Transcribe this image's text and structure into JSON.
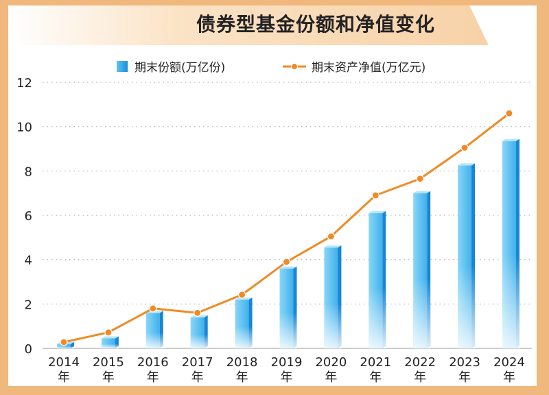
{
  "title": "债券型基金份额和净值变化",
  "legend": {
    "bar": "期末份额(万亿份)",
    "line": "期末资产净值(万亿元)"
  },
  "colors": {
    "bar_light": "#7fd0f5",
    "bar_dark": "#1a8ad6",
    "line": "#f08a24",
    "frame": "#f0b87c"
  },
  "chart_data": {
    "type": "bar",
    "title": "债券型基金份额和净值变化",
    "categories": [
      "2014",
      "2015",
      "2016",
      "2017",
      "2018",
      "2019",
      "2020",
      "2021",
      "2022",
      "2023",
      "2024"
    ],
    "category_suffix": "年",
    "series": [
      {
        "name": "期末份额(万亿份)",
        "type": "bar",
        "values": [
          0.2,
          0.45,
          1.6,
          1.4,
          2.2,
          3.6,
          4.55,
          6.1,
          7.0,
          8.25,
          9.35
        ]
      },
      {
        "name": "期末资产净值(万亿元)",
        "type": "line",
        "values": [
          0.28,
          0.72,
          1.8,
          1.6,
          2.42,
          3.9,
          5.05,
          6.9,
          7.65,
          9.05,
          10.6
        ]
      }
    ],
    "ylim": [
      0,
      12
    ],
    "yticks": [
      0,
      2,
      4,
      6,
      8,
      10,
      12
    ],
    "grid": true,
    "legend_position": "top"
  }
}
